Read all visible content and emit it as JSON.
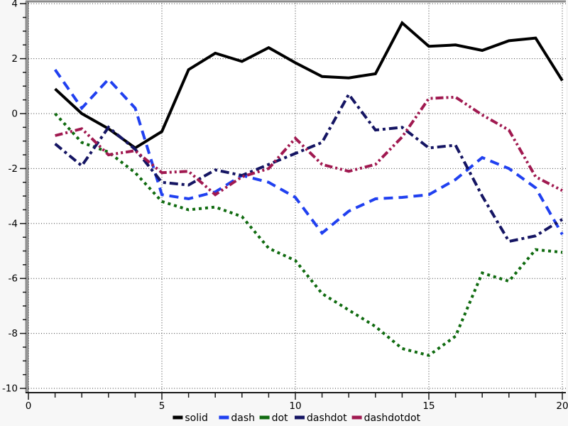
{
  "figure": {
    "background": "#f7f7f7",
    "plot_background": "#ffffff",
    "grid_color": "#3a3a3a",
    "spine_color": "#8c8c8c",
    "axis_color": "#1a1a1a",
    "title": ""
  },
  "chart_data": {
    "type": "line",
    "title": "",
    "xlabel": "",
    "ylabel": "",
    "xlim": [
      0,
      20.15
    ],
    "ylim": [
      -10.2,
      4.1
    ],
    "grid": "dotted major gridlines, both axes",
    "legend_position": "bottom-center",
    "x_major_ticks": [
      0,
      5,
      10,
      15,
      20
    ],
    "x_minor_step": 1,
    "y_major_ticks": [
      4,
      2,
      0,
      -2,
      -4,
      -6,
      -8,
      -10
    ],
    "y_minor_step": 0.5,
    "x": [
      1,
      2,
      3,
      4,
      5,
      6,
      7,
      8,
      9,
      10,
      11,
      12,
      13,
      14,
      15,
      16,
      17,
      18,
      19,
      20
    ],
    "series": [
      {
        "name": "solid",
        "color": "#000000",
        "style": "solid",
        "values": [
          0.9,
          0.0,
          -0.55,
          -1.25,
          -0.65,
          1.6,
          2.2,
          1.9,
          2.4,
          1.85,
          1.35,
          1.3,
          1.45,
          3.3,
          2.45,
          2.5,
          2.3,
          2.65,
          2.75,
          1.2
        ]
      },
      {
        "name": "dash",
        "color": "#2040f0",
        "style": "dash",
        "values": [
          1.6,
          0.2,
          1.25,
          0.2,
          -2.95,
          -3.1,
          -2.85,
          -2.25,
          -2.5,
          -3.05,
          -4.35,
          -3.55,
          -3.1,
          -3.05,
          -2.95,
          -2.4,
          -1.6,
          -2.0,
          -2.7,
          -4.4
        ]
      },
      {
        "name": "dot",
        "color": "#106b10",
        "style": "dot",
        "values": [
          0.0,
          -1.05,
          -1.4,
          -2.15,
          -3.2,
          -3.5,
          -3.4,
          -3.75,
          -4.9,
          -5.35,
          -6.55,
          -7.15,
          -7.75,
          -8.55,
          -8.8,
          -8.1,
          -5.8,
          -6.1,
          -4.95,
          -5.05
        ]
      },
      {
        "name": "dashdot",
        "color": "#151563",
        "style": "dashdot",
        "values": [
          -1.1,
          -1.9,
          -0.5,
          -1.3,
          -2.5,
          -2.6,
          -2.05,
          -2.25,
          -1.85,
          -1.45,
          -1.05,
          0.7,
          -0.6,
          -0.5,
          -1.25,
          -1.15,
          -3.0,
          -4.65,
          -4.45,
          -3.85
        ]
      },
      {
        "name": "dashdotdot",
        "color": "#a01950",
        "style": "dashdotdot",
        "values": [
          -0.8,
          -0.55,
          -1.5,
          -1.35,
          -2.15,
          -2.1,
          -2.95,
          -2.3,
          -2.0,
          -0.9,
          -1.85,
          -2.1,
          -1.85,
          -0.85,
          0.55,
          0.6,
          -0.05,
          -0.6,
          -2.3,
          -2.8
        ]
      }
    ]
  },
  "legend": {
    "labels": [
      "solid",
      "dash",
      "dot",
      "dashdot",
      "dashdotdot"
    ]
  }
}
